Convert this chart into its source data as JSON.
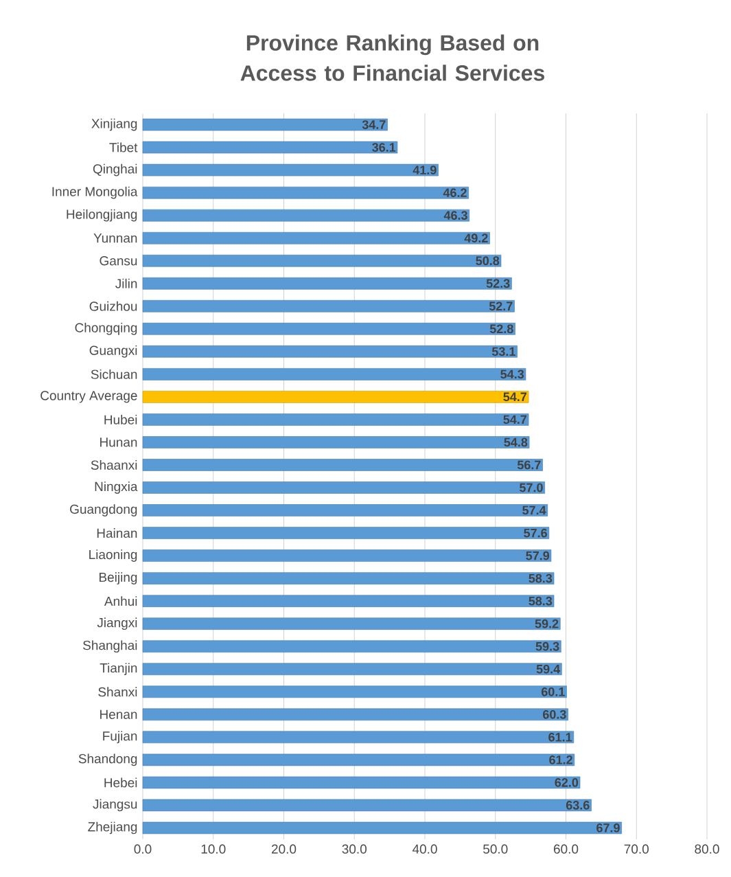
{
  "chart_data": {
    "type": "bar",
    "orientation": "horizontal",
    "title": "Province Ranking Based on Access to Financial Services",
    "categories": [
      "Xinjiang",
      "Tibet",
      "Qinghai",
      "Inner Mongolia",
      "Heilongjiang",
      "Yunnan",
      "Gansu",
      "Jilin",
      "Guizhou",
      "Chongqing",
      "Guangxi",
      "Sichuan",
      "Country Average",
      "Hubei",
      "Hunan",
      "Shaanxi",
      "Ningxia",
      "Guangdong",
      "Hainan",
      "Liaoning",
      "Beijing",
      "Anhui",
      "Jiangxi",
      "Shanghai",
      "Tianjin",
      "Shanxi",
      "Henan",
      "Fujian",
      "Shandong",
      "Hebei",
      "Jiangsu",
      "Zhejiang"
    ],
    "values": [
      34.7,
      36.1,
      41.9,
      46.2,
      46.3,
      49.2,
      50.8,
      52.3,
      52.7,
      52.8,
      53.1,
      54.3,
      54.7,
      54.7,
      54.8,
      56.7,
      57.0,
      57.4,
      57.6,
      57.9,
      58.3,
      58.3,
      59.2,
      59.3,
      59.4,
      60.1,
      60.3,
      61.1,
      61.2,
      62.0,
      63.6,
      67.9
    ],
    "value_labels": [
      "34.7",
      "36.1",
      "41.9",
      "46.2",
      "46.3",
      "49.2",
      "50.8",
      "52.3",
      "52.7",
      "52.8",
      "53.1",
      "54.3",
      "54.7",
      "54.7",
      "54.8",
      "56.7",
      "57.0",
      "57.4",
      "57.6",
      "57.9",
      "58.3",
      "58.3",
      "59.2",
      "59.3",
      "59.4",
      "60.1",
      "60.3",
      "61.1",
      "61.2",
      "62.0",
      "63.6",
      "67.9"
    ],
    "colors": [
      "#5b9bd5",
      "#5b9bd5",
      "#5b9bd5",
      "#5b9bd5",
      "#5b9bd5",
      "#5b9bd5",
      "#5b9bd5",
      "#5b9bd5",
      "#5b9bd5",
      "#5b9bd5",
      "#5b9bd5",
      "#5b9bd5",
      "#ffc000",
      "#5b9bd5",
      "#5b9bd5",
      "#5b9bd5",
      "#5b9bd5",
      "#5b9bd5",
      "#5b9bd5",
      "#5b9bd5",
      "#5b9bd5",
      "#5b9bd5",
      "#5b9bd5",
      "#5b9bd5",
      "#5b9bd5",
      "#5b9bd5",
      "#5b9bd5",
      "#5b9bd5",
      "#5b9bd5",
      "#5b9bd5",
      "#5b9bd5",
      "#5b9bd5"
    ],
    "xlim": [
      0,
      80
    ],
    "xticks": [
      {
        "value": 0,
        "label": "0.0"
      },
      {
        "value": 10,
        "label": "10.0"
      },
      {
        "value": 20,
        "label": "20.0"
      },
      {
        "value": 30,
        "label": "30.0"
      },
      {
        "value": 40,
        "label": "40.0"
      },
      {
        "value": 50,
        "label": "50.0"
      },
      {
        "value": 60,
        "label": "60.0"
      },
      {
        "value": 70,
        "label": "70.0"
      },
      {
        "value": 80,
        "label": "80.0"
      }
    ],
    "grid": "x"
  }
}
